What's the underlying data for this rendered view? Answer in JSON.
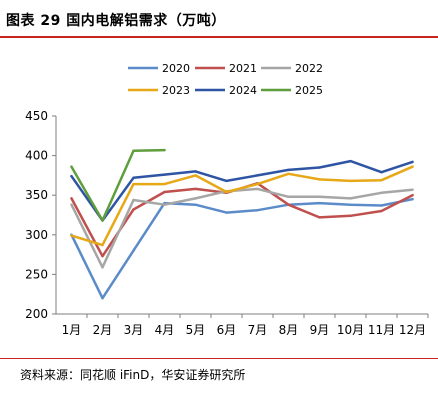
{
  "header": {
    "title": "图表 29  国内电解铝需求（万吨）"
  },
  "footer": {
    "source": "资料来源：同花顺 iFinD，华安证券研究所"
  },
  "chart_data": {
    "type": "line",
    "title": "",
    "xlabel": "",
    "ylabel": "",
    "ylim": [
      200,
      450
    ],
    "yticks": [
      200,
      250,
      300,
      350,
      400,
      450
    ],
    "grid": false,
    "legend_position": "top",
    "categories": [
      "1月",
      "2月",
      "3月",
      "4月",
      "5月",
      "6月",
      "7月",
      "8月",
      "9月",
      "10月",
      "11月",
      "12月"
    ],
    "series": [
      {
        "name": "2020",
        "color": "#5b8bc9",
        "values": [
          300,
          220,
          280,
          340,
          338,
          328,
          331,
          338,
          340,
          338,
          337,
          345
        ]
      },
      {
        "name": "2021",
        "color": "#c0504d",
        "values": [
          346,
          273,
          332,
          354,
          358,
          353,
          365,
          338,
          322,
          324,
          330,
          350
        ]
      },
      {
        "name": "2022",
        "color": "#a6a6a6",
        "values": [
          338,
          259,
          344,
          338,
          346,
          355,
          358,
          348,
          348,
          346,
          353,
          357
        ]
      },
      {
        "name": "2023",
        "color": "#e6a817",
        "values": [
          299,
          287,
          364,
          364,
          375,
          354,
          364,
          377,
          370,
          368,
          369,
          386
        ]
      },
      {
        "name": "2024",
        "color": "#2e55a3",
        "values": [
          374,
          318,
          372,
          376,
          380,
          368,
          375,
          382,
          385,
          393,
          379,
          392
        ]
      },
      {
        "name": "2025",
        "color": "#5f9e3c",
        "values": [
          386,
          318,
          406,
          407,
          null,
          null,
          null,
          null,
          null,
          null,
          null,
          null
        ]
      }
    ]
  }
}
